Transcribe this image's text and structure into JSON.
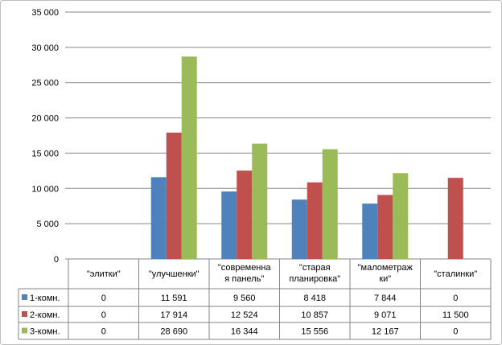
{
  "chart_data": {
    "type": "bar",
    "categories": [
      [
        "\"элитки\""
      ],
      [
        "\"улучшенки\""
      ],
      [
        "\"современна",
        "я панель\""
      ],
      [
        "\"старая",
        "планировка\""
      ],
      [
        "\"малометраж",
        "ки\""
      ],
      [
        "\"сталинки\""
      ]
    ],
    "series": [
      {
        "name": "1-комн.",
        "color": "#4f81bd",
        "values": [
          0,
          11591,
          9560,
          8418,
          7844,
          0
        ],
        "labels": [
          "0",
          "11 591",
          "9 560",
          "8 418",
          "7 844",
          "0"
        ]
      },
      {
        "name": "2-комн.",
        "color": "#c0504d",
        "values": [
          0,
          17914,
          12524,
          10857,
          9071,
          11500
        ],
        "labels": [
          "0",
          "17 914",
          "12 524",
          "10 857",
          "9 071",
          "11 500"
        ]
      },
      {
        "name": "3-комн.",
        "color": "#9bbb59",
        "values": [
          0,
          28690,
          16344,
          15556,
          12167,
          0
        ],
        "labels": [
          "0",
          "28 690",
          "16 344",
          "15 556",
          "12 167",
          "0"
        ]
      }
    ],
    "yticks": [
      0,
      5000,
      10000,
      15000,
      20000,
      25000,
      30000,
      35000
    ],
    "ytick_labels": [
      "0",
      "5 000",
      "10 000",
      "15 000",
      "20 000",
      "25 000",
      "30 000",
      "35 000"
    ],
    "ylim": [
      0,
      35000
    ],
    "grid": true,
    "legend": "data-table"
  }
}
